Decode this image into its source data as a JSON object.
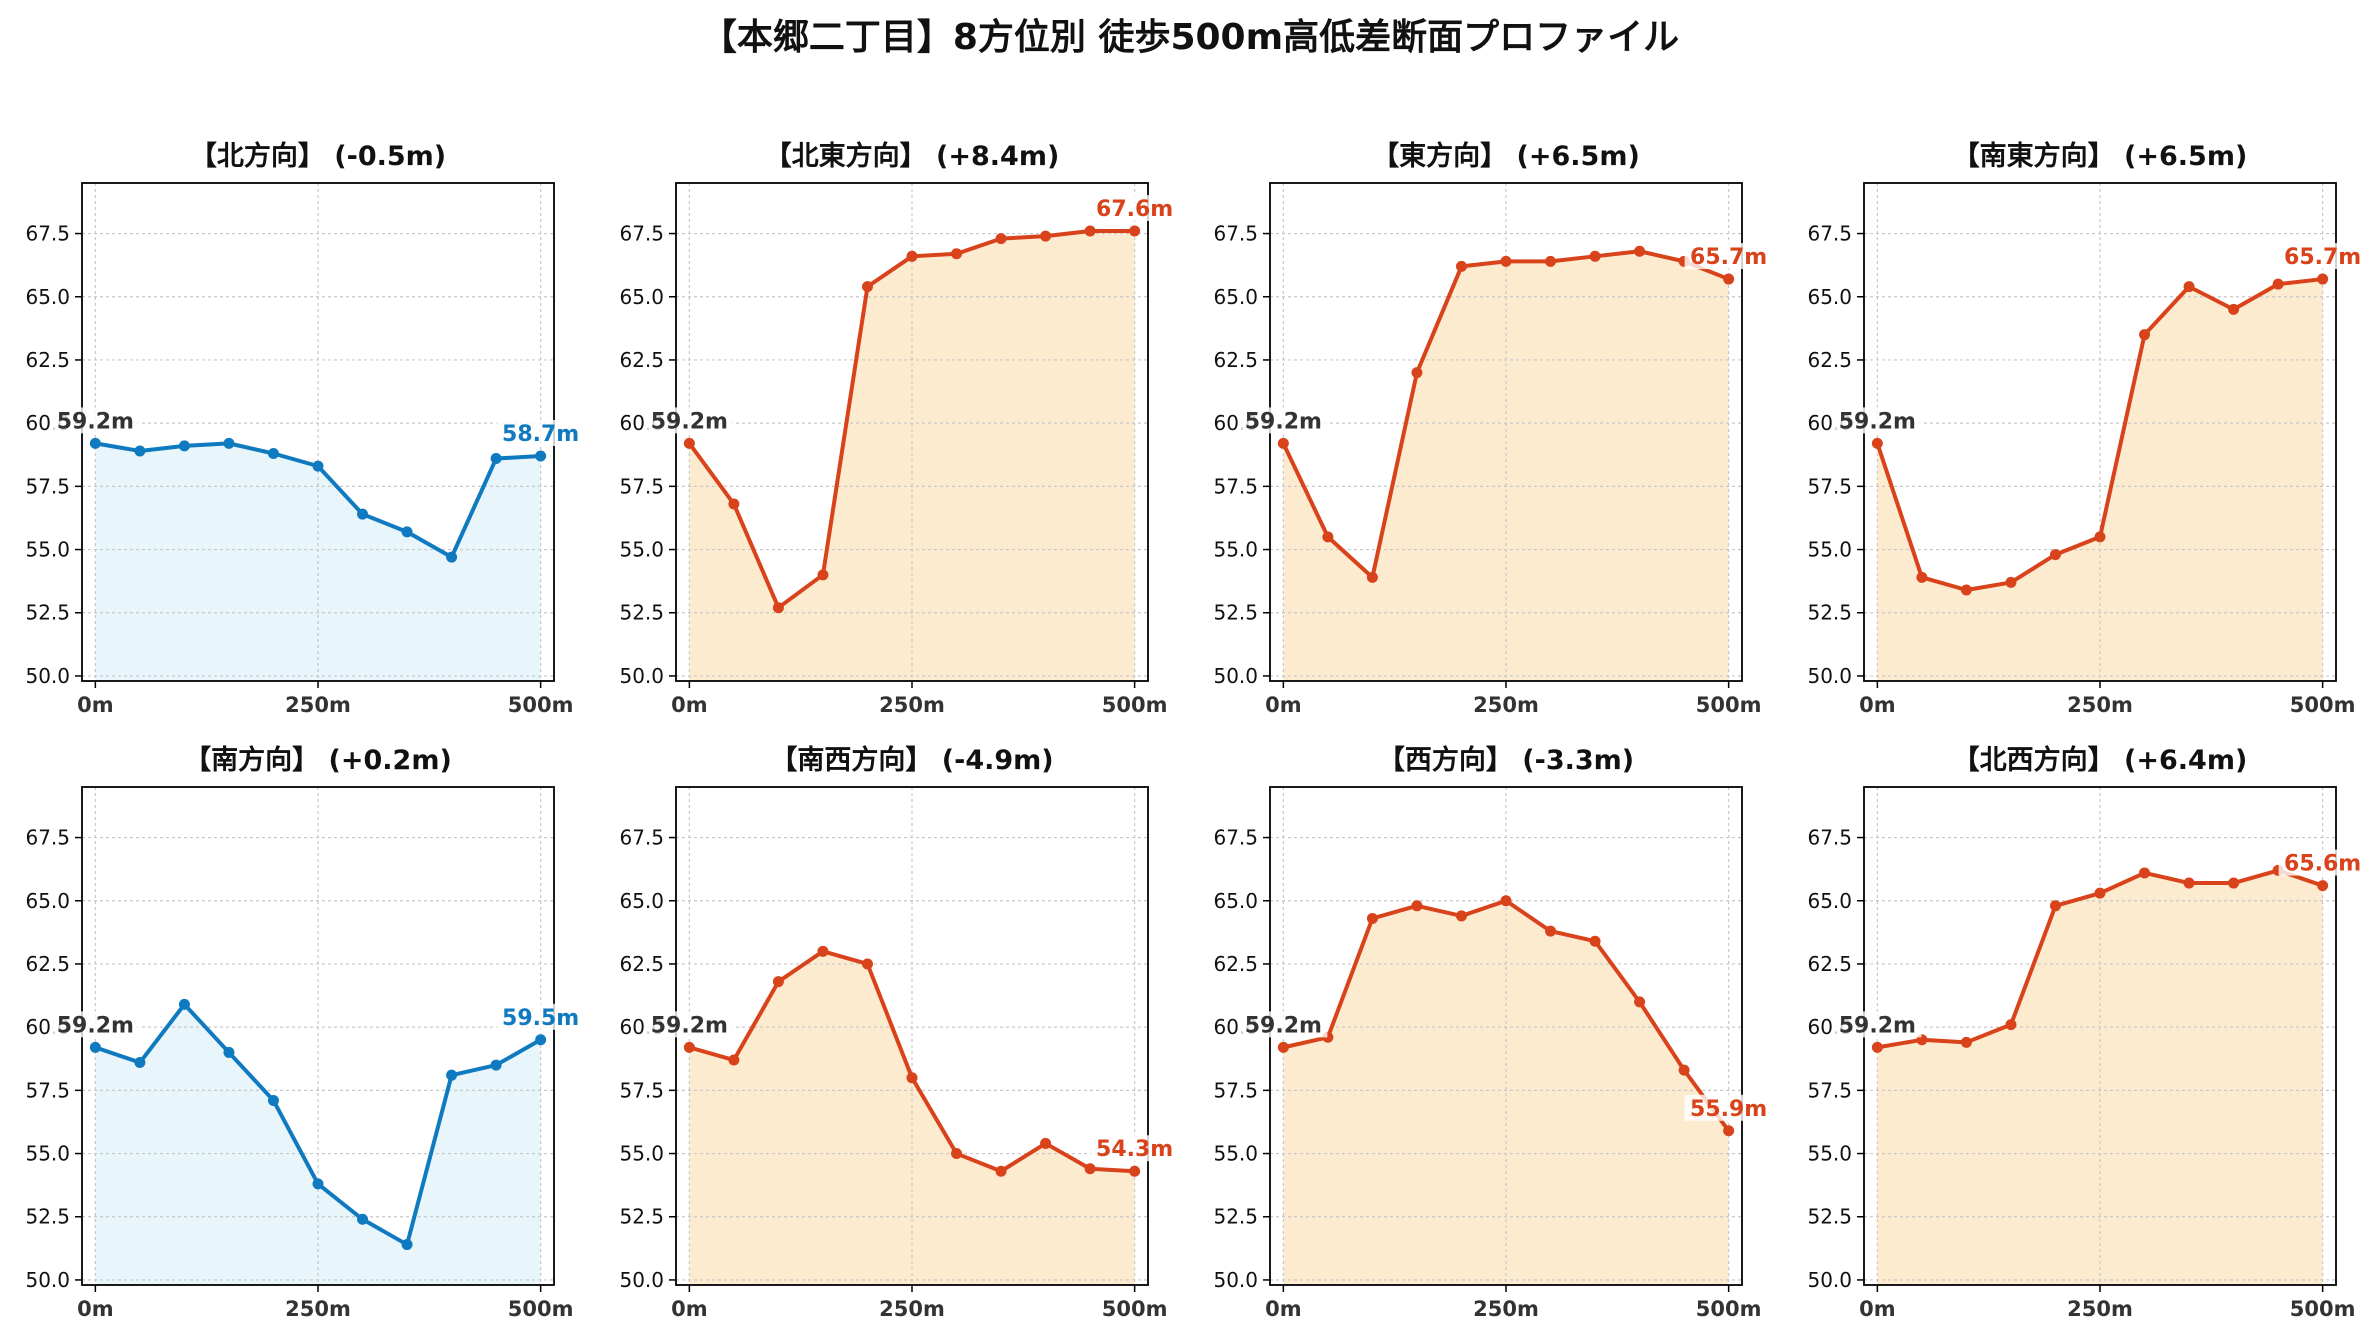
{
  "title": "【本郷二丁目】8方位別 徒歩500m高低差断面プロファイル",
  "colors": {
    "downhill_line": "#0f7abf",
    "downhill_fill": "#e8f5fb",
    "uphill_line": "#d9431b",
    "uphill_fill": "#fdebd0",
    "start_label": "#333333",
    "grid": "#c8c8c8"
  },
  "chart_data": [
    {
      "type": "line",
      "title": "【北方向】 (-0.5m)",
      "trend": "down",
      "x": [
        0,
        50,
        100,
        150,
        200,
        250,
        300,
        350,
        400,
        450,
        500
      ],
      "values": [
        59.2,
        58.9,
        59.1,
        59.2,
        58.8,
        58.3,
        56.4,
        55.7,
        54.7,
        58.6,
        58.7
      ],
      "start_label": "59.2m",
      "end_label": "58.7m",
      "xticks": [
        "0m",
        "250m",
        "500m"
      ],
      "yticks": [
        "50.0",
        "52.5",
        "55.0",
        "57.5",
        "60.0",
        "62.5",
        "65.0",
        "67.5"
      ],
      "ylim": [
        49.8,
        69.5
      ],
      "xlim": [
        -15,
        515
      ],
      "grid": true
    },
    {
      "type": "line",
      "title": "【北東方向】 (+8.4m)",
      "trend": "up",
      "x": [
        0,
        50,
        100,
        150,
        200,
        250,
        300,
        350,
        400,
        450,
        500
      ],
      "values": [
        59.2,
        56.8,
        52.7,
        54.0,
        65.4,
        66.6,
        66.7,
        67.3,
        67.4,
        67.6,
        67.6
      ],
      "start_label": "59.2m",
      "end_label": "67.6m",
      "xticks": [
        "0m",
        "250m",
        "500m"
      ],
      "yticks": [
        "50.0",
        "52.5",
        "55.0",
        "57.5",
        "60.0",
        "62.5",
        "65.0",
        "67.5"
      ],
      "ylim": [
        49.8,
        69.5
      ],
      "xlim": [
        -15,
        515
      ],
      "grid": true
    },
    {
      "type": "line",
      "title": "【東方向】 (+6.5m)",
      "trend": "up",
      "x": [
        0,
        50,
        100,
        150,
        200,
        250,
        300,
        350,
        400,
        450,
        500
      ],
      "values": [
        59.2,
        55.5,
        53.9,
        62.0,
        66.2,
        66.4,
        66.4,
        66.6,
        66.8,
        66.4,
        65.7
      ],
      "start_label": "59.2m",
      "end_label": "65.7m",
      "xticks": [
        "0m",
        "250m",
        "500m"
      ],
      "yticks": [
        "50.0",
        "52.5",
        "55.0",
        "57.5",
        "60.0",
        "62.5",
        "65.0",
        "67.5"
      ],
      "ylim": [
        49.8,
        69.5
      ],
      "xlim": [
        -15,
        515
      ],
      "grid": true
    },
    {
      "type": "line",
      "title": "【南東方向】 (+6.5m)",
      "trend": "up",
      "x": [
        0,
        50,
        100,
        150,
        200,
        250,
        300,
        350,
        400,
        450,
        500
      ],
      "values": [
        59.2,
        53.9,
        53.4,
        53.7,
        54.8,
        55.5,
        63.5,
        65.4,
        64.5,
        65.5,
        65.7
      ],
      "start_label": "59.2m",
      "end_label": "65.7m",
      "xticks": [
        "0m",
        "250m",
        "500m"
      ],
      "yticks": [
        "50.0",
        "52.5",
        "55.0",
        "57.5",
        "60.0",
        "62.5",
        "65.0",
        "67.5"
      ],
      "ylim": [
        49.8,
        69.5
      ],
      "xlim": [
        -15,
        515
      ],
      "grid": true
    },
    {
      "type": "line",
      "title": "【南方向】 (+0.2m)",
      "trend": "down",
      "x": [
        0,
        50,
        100,
        150,
        200,
        250,
        300,
        350,
        400,
        450,
        500
      ],
      "values": [
        59.2,
        58.6,
        60.9,
        59.0,
        57.1,
        53.8,
        52.4,
        51.4,
        58.1,
        58.5,
        59.5
      ],
      "start_label": "59.2m",
      "end_label": "59.5m",
      "xticks": [
        "0m",
        "250m",
        "500m"
      ],
      "yticks": [
        "50.0",
        "52.5",
        "55.0",
        "57.5",
        "60.0",
        "62.5",
        "65.0",
        "67.5"
      ],
      "ylim": [
        49.8,
        69.5
      ],
      "xlim": [
        -15,
        515
      ],
      "grid": true
    },
    {
      "type": "line",
      "title": "【南西方向】 (-4.9m)",
      "trend": "up",
      "x": [
        0,
        50,
        100,
        150,
        200,
        250,
        300,
        350,
        400,
        450,
        500
      ],
      "values": [
        59.2,
        58.7,
        61.8,
        63.0,
        62.5,
        58.0,
        55.0,
        54.3,
        55.4,
        54.4,
        54.3
      ],
      "start_label": "59.2m",
      "end_label": "54.3m",
      "xticks": [
        "0m",
        "250m",
        "500m"
      ],
      "yticks": [
        "50.0",
        "52.5",
        "55.0",
        "57.5",
        "60.0",
        "62.5",
        "65.0",
        "67.5"
      ],
      "ylim": [
        49.8,
        69.5
      ],
      "xlim": [
        -15,
        515
      ],
      "grid": true
    },
    {
      "type": "line",
      "title": "【西方向】 (-3.3m)",
      "trend": "up",
      "x": [
        0,
        50,
        100,
        150,
        200,
        250,
        300,
        350,
        400,
        450,
        500
      ],
      "values": [
        59.2,
        59.6,
        64.3,
        64.8,
        64.4,
        65.0,
        63.8,
        63.4,
        61.0,
        58.3,
        55.9
      ],
      "start_label": "59.2m",
      "end_label": "55.9m",
      "xticks": [
        "0m",
        "250m",
        "500m"
      ],
      "yticks": [
        "50.0",
        "52.5",
        "55.0",
        "57.5",
        "60.0",
        "62.5",
        "65.0",
        "67.5"
      ],
      "ylim": [
        49.8,
        69.5
      ],
      "xlim": [
        -15,
        515
      ],
      "grid": true
    },
    {
      "type": "line",
      "title": "【北西方向】 (+6.4m)",
      "trend": "up",
      "x": [
        0,
        50,
        100,
        150,
        200,
        250,
        300,
        350,
        400,
        450,
        500
      ],
      "values": [
        59.2,
        59.5,
        59.4,
        60.1,
        64.8,
        65.3,
        66.1,
        65.7,
        65.7,
        66.2,
        65.6
      ],
      "start_label": "59.2m",
      "end_label": "65.6m",
      "xticks": [
        "0m",
        "250m",
        "500m"
      ],
      "yticks": [
        "50.0",
        "52.5",
        "55.0",
        "57.5",
        "60.0",
        "62.5",
        "65.0",
        "67.5"
      ],
      "ylim": [
        49.8,
        69.5
      ],
      "xlim": [
        -15,
        515
      ],
      "grid": true
    }
  ]
}
